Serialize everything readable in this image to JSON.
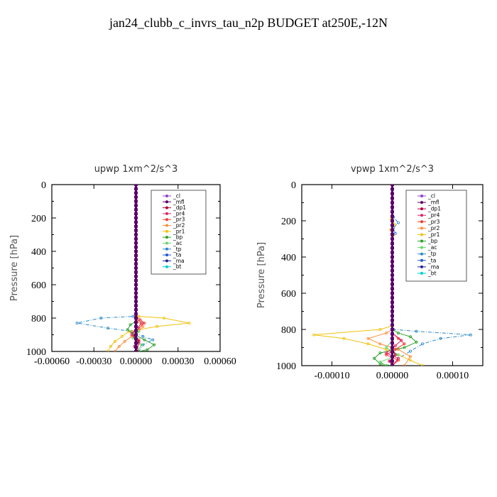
{
  "title": "jan24_clubb_c_invrs_tau_n2p  BUDGET at250E,-12N",
  "legend_entries": [
    "_cl",
    "_mfl",
    "_dp1",
    "_pr4",
    "_pr3",
    "_pr2",
    "_pr1",
    "_bp",
    "_ac",
    "_tp",
    "_ta",
    "_ma",
    "_bt"
  ],
  "legend_colors": [
    "#8e44c9",
    "#5b006b",
    "#b3003a",
    "#e0245e",
    "#ef3b2c",
    "#fd8d3c",
    "#f0c20f",
    "#2ca02c",
    "#66d96a",
    "#2c88c9",
    "#2255cc",
    "#222299",
    "#00d0d0"
  ],
  "chart_data": [
    {
      "type": "line",
      "title": "upwp   1xm^2/s^3",
      "xlabel": "",
      "ylabel": "Pressure [hPa]",
      "xlim": [
        -0.0006,
        0.0006
      ],
      "ylim": [
        1000,
        0
      ],
      "x_ticks": [
        "-0.00060",
        "-0.00030",
        "0.00000",
        "0.00030",
        "0.00060"
      ],
      "y_ticks": [
        "0",
        "200",
        "400",
        "600",
        "800",
        "1000"
      ],
      "legend": "top-right",
      "series": [
        {
          "name": "_tp",
          "x": [
            0,
            0,
            -2e-05,
            -0.00025,
            -0.00042,
            -0.0002,
            -3e-05,
            5e-05,
            0.00012,
            5e-05,
            2e-05
          ],
          "y": [
            0,
            780,
            790,
            800,
            830,
            860,
            880,
            910,
            930,
            960,
            1000
          ]
        },
        {
          "name": "_pr1",
          "x": [
            0,
            0,
            2e-05,
            0.0002,
            0.00038,
            0.00015,
            -5e-05,
            -0.0001,
            -0.00015,
            -0.00018,
            -0.0002
          ],
          "y": [
            0,
            780,
            790,
            800,
            830,
            850,
            880,
            910,
            940,
            970,
            1000
          ]
        },
        {
          "name": "_pr2",
          "x": [
            0,
            0,
            1e-05,
            5e-05,
            2e-05,
            -3e-05,
            -8e-05,
            -0.00012,
            -0.00015
          ],
          "y": [
            0,
            800,
            820,
            850,
            880,
            910,
            940,
            970,
            1000
          ]
        },
        {
          "name": "_pr3",
          "x": [
            0,
            0,
            3e-05,
            6e-05,
            2e-05,
            -3e-05,
            2e-05,
            1e-05
          ],
          "y": [
            0,
            790,
            810,
            830,
            860,
            890,
            930,
            1000
          ]
        },
        {
          "name": "_pr4",
          "x": [
            0,
            0,
            4e-05,
            1e-05,
            -3e-05,
            2e-05,
            0
          ],
          "y": [
            0,
            800,
            830,
            860,
            900,
            950,
            1000
          ]
        },
        {
          "name": "_bp",
          "x": [
            0,
            0,
            -4e-05,
            -6e-05,
            -1e-05,
            6e-05,
            0.00013,
            8e-05,
            2e-05
          ],
          "y": [
            0,
            820,
            840,
            870,
            900,
            930,
            960,
            990,
            1000
          ]
        },
        {
          "name": "_ac",
          "x": [
            0,
            0,
            2e-05,
            -2e-05,
            4e-05,
            1e-05
          ],
          "y": [
            0,
            850,
            880,
            920,
            960,
            1000
          ]
        },
        {
          "name": "_dp1",
          "x": [
            0,
            0,
            -1e-05,
            2e-05,
            -1e-05,
            1e-05
          ],
          "y": [
            0,
            880,
            910,
            940,
            970,
            1000
          ]
        },
        {
          "name": "_mfl",
          "x": [
            0,
            0
          ],
          "y": [
            0,
            1000
          ]
        }
      ]
    },
    {
      "type": "line",
      "title": "vpwp   1xm^2/s^3",
      "xlabel": "",
      "ylabel": "Pressure [hPa]",
      "xlim": [
        -0.00015,
        0.00015
      ],
      "ylim": [
        1000,
        0
      ],
      "x_ticks": [
        "-0.00010",
        "0.00000",
        "0.00010"
      ],
      "y_ticks": [
        "0",
        "200",
        "400",
        "600",
        "800",
        "1000"
      ],
      "legend": "top-right",
      "series": [
        {
          "name": "_tp",
          "x": [
            0,
            0,
            2e-06,
            1e-05,
            2e-06,
            5e-06,
            0,
            0,
            2e-06,
            4e-05,
            0.00013,
            8e-05,
            5e-05,
            3e-05,
            1e-05,
            0
          ],
          "y": [
            0,
            150,
            180,
            210,
            240,
            270,
            300,
            780,
            800,
            810,
            830,
            850,
            880,
            920,
            960,
            1000
          ]
        },
        {
          "name": "_pr1",
          "x": [
            0,
            0,
            -2e-06,
            4e-06,
            -3e-06,
            2e-06,
            0,
            0,
            -2e-05,
            -0.00013,
            -8e-05,
            -4e-05,
            -1e-05,
            1e-05,
            3e-05,
            5e-05
          ],
          "y": [
            0,
            150,
            190,
            220,
            250,
            280,
            300,
            780,
            800,
            830,
            850,
            880,
            910,
            940,
            970,
            1000
          ]
        },
        {
          "name": "_pr2",
          "x": [
            0,
            0,
            -1e-05,
            -4e-05,
            -2e-05,
            1e-05,
            3e-05,
            2e-05
          ],
          "y": [
            0,
            800,
            820,
            850,
            880,
            910,
            950,
            1000
          ]
        },
        {
          "name": "_bp",
          "x": [
            0,
            0,
            1e-05,
            3e-05,
            4e-05,
            2e-05,
            -2e-05,
            -3e-05,
            -2e-05,
            0
          ],
          "y": [
            0,
            800,
            820,
            840,
            870,
            900,
            930,
            960,
            990,
            1000
          ]
        },
        {
          "name": "_pr3",
          "x": [
            0,
            0,
            1e-05,
            2e-05,
            5e-06,
            -1e-05,
            1e-05,
            0
          ],
          "y": [
            0,
            820,
            850,
            880,
            910,
            940,
            970,
            1000
          ]
        },
        {
          "name": "_pr4",
          "x": [
            0,
            0,
            1.5e-05,
            5e-06,
            -1e-05,
            1e-05,
            0
          ],
          "y": [
            0,
            820,
            860,
            890,
            930,
            960,
            1000
          ]
        },
        {
          "name": "_ac",
          "x": [
            0,
            0,
            -1e-05,
            1e-05,
            -2e-05,
            -1e-05
          ],
          "y": [
            0,
            860,
            900,
            940,
            980,
            1000
          ]
        },
        {
          "name": "_dp1",
          "x": [
            0,
            0,
            5e-06,
            -5e-06,
            0
          ],
          "y": [
            0,
            900,
            940,
            975,
            1000
          ]
        },
        {
          "name": "_mfl",
          "x": [
            0,
            0
          ],
          "y": [
            0,
            1000
          ]
        }
      ]
    }
  ]
}
